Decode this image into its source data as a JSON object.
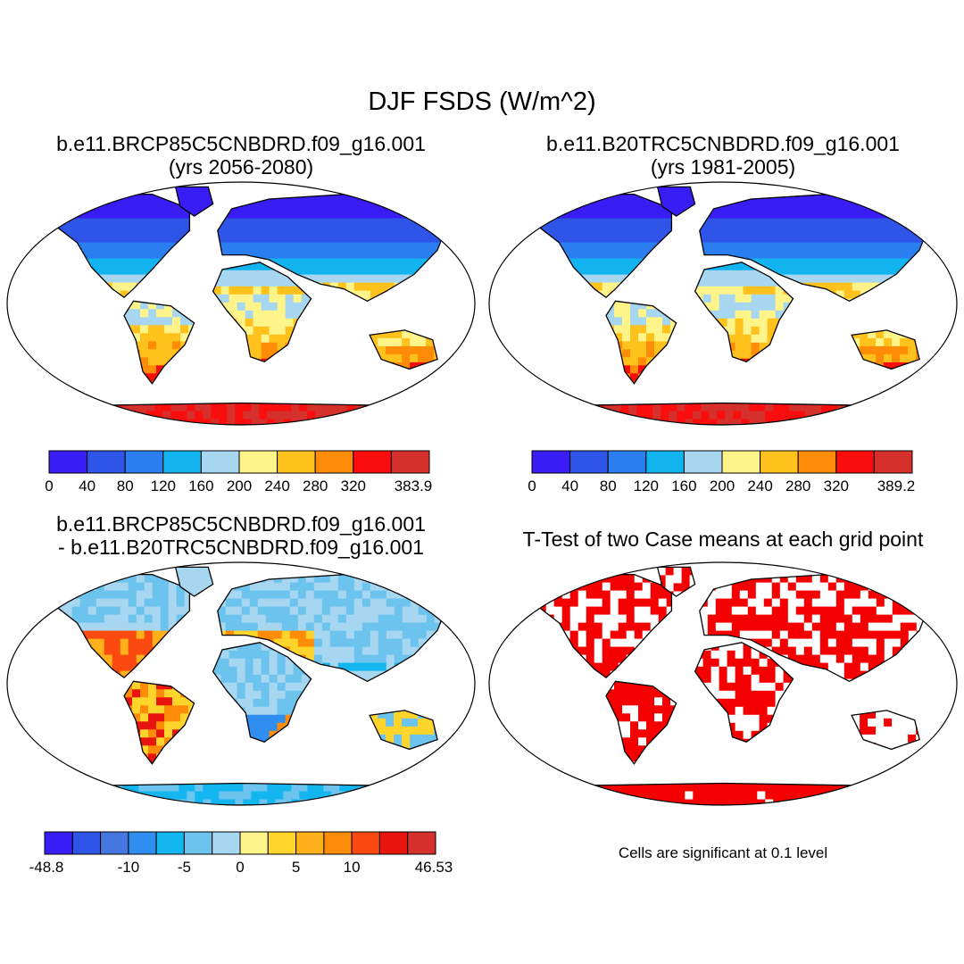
{
  "figure_title": "DJF FSDS (W/m^2)",
  "panels": {
    "top_left": {
      "title_line1": "b.e11.BRCP85C5CNBDRD.f09_g16.001",
      "title_line2": "(yrs 2056-2080)"
    },
    "top_right": {
      "title_line1": "b.e11.B20TRC5CNBDRD.f09_g16.001",
      "title_line2": "(yrs 1981-2005)"
    },
    "bottom_left": {
      "title_line1": "b.e11.BRCP85C5CNBDRD.f09_g16.001",
      "title_line2": "- b.e11.B20TRC5CNBDRD.f09_g16.001"
    },
    "bottom_right": {
      "title_line1": "T-Test of two Case means at each grid point",
      "footnote": "Cells are significant at 0.1 level"
    }
  },
  "chart_data": [
    {
      "type": "heatmap",
      "name": "future-fsds-map",
      "projection": "Robinson (world)",
      "colorbar": {
        "colors": [
          "#3a1cf5",
          "#2f55e8",
          "#2a7ef0",
          "#12b4ef",
          "#a6d6f0",
          "#fff48a",
          "#ffc21d",
          "#ff8c06",
          "#fa0d0d",
          "#d6302d"
        ],
        "tick_labels": [
          "0",
          "40",
          "80",
          "120",
          "160",
          "200",
          "240",
          "280",
          "320",
          "383.9"
        ],
        "max": 383.9
      }
    },
    {
      "type": "heatmap",
      "name": "historical-fsds-map",
      "projection": "Robinson (world)",
      "colorbar": {
        "colors": [
          "#3a1cf5",
          "#2f55e8",
          "#2a7ef0",
          "#12b4ef",
          "#a6d6f0",
          "#fff48a",
          "#ffc21d",
          "#ff8c06",
          "#fa0d0d",
          "#d6302d"
        ],
        "tick_labels": [
          "0",
          "40",
          "80",
          "120",
          "160",
          "200",
          "240",
          "280",
          "320",
          "389.2"
        ],
        "max": 389.2
      }
    },
    {
      "type": "heatmap",
      "name": "difference-fsds-map",
      "projection": "Robinson (world)",
      "colorbar": {
        "colors": [
          "#3a1cf5",
          "#2f55e8",
          "#4677e0",
          "#2f8ef0",
          "#14b6ef",
          "#6cc3ee",
          "#a6d6f0",
          "#fff48a",
          "#ffd52c",
          "#ffb01a",
          "#ff8c06",
          "#fa4a10",
          "#e8140e",
          "#d6302d"
        ],
        "tick_labels": [
          "-48.8",
          "-10",
          "-5",
          "0",
          "5",
          "10",
          "46.53"
        ],
        "min": -48.8,
        "max": 46.53
      }
    },
    {
      "type": "heatmap",
      "name": "ttest-significance-map",
      "projection": "Robinson (world)",
      "significant_color": "#f50000",
      "significance_level": 0.1
    }
  ]
}
